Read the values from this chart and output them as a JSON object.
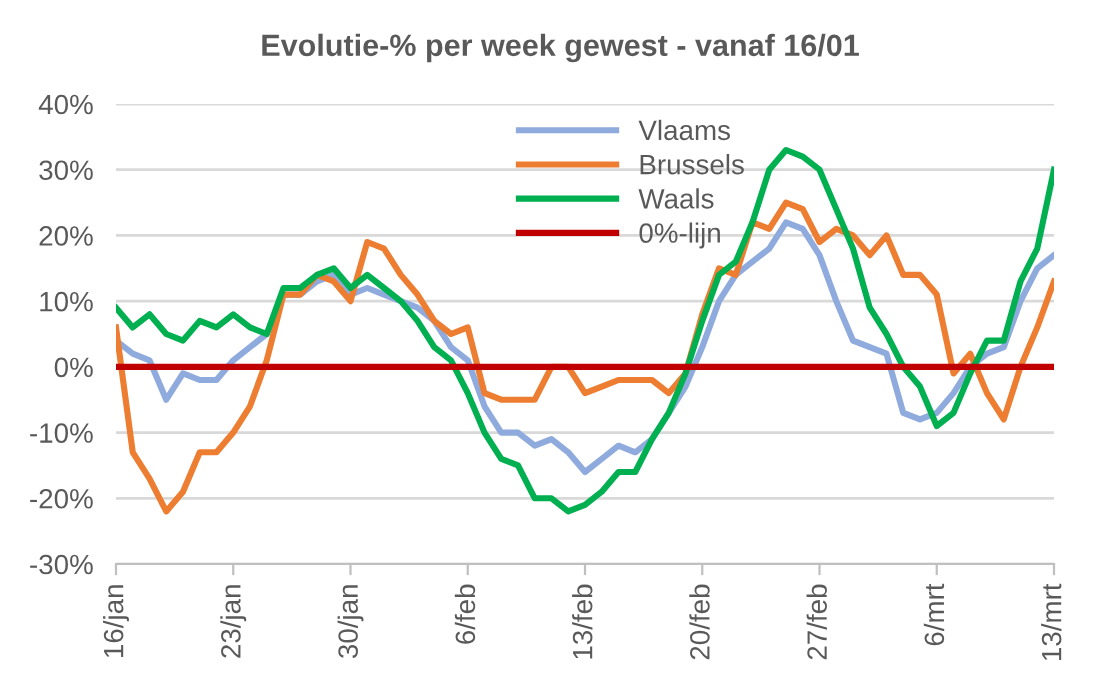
{
  "chart_data": {
    "type": "line",
    "title": "Evolutie-% per week gewest - vanaf 16/01",
    "categories": [
      "16/jan",
      null,
      null,
      null,
      null,
      null,
      null,
      "23/jan",
      null,
      null,
      null,
      null,
      null,
      null,
      "30/jan",
      null,
      null,
      null,
      null,
      null,
      null,
      "6/feb",
      null,
      null,
      null,
      null,
      null,
      null,
      "13/feb",
      null,
      null,
      null,
      null,
      null,
      null,
      "20/feb",
      null,
      null,
      null,
      null,
      null,
      null,
      "27/feb",
      null,
      null,
      null,
      null,
      null,
      null,
      "6/mrt",
      null,
      null,
      null,
      null,
      null,
      null,
      "13/mrt"
    ],
    "series": [
      {
        "name": "Vlaams",
        "color": "#8faadc",
        "values": [
          4,
          2,
          1,
          -5,
          -1,
          -2,
          -2,
          1,
          3,
          5,
          11,
          11,
          13,
          14,
          11,
          12,
          11,
          10,
          9,
          7,
          3,
          1,
          -6,
          -10,
          -10,
          -12,
          -11,
          -13,
          -16,
          -14,
          -12,
          -13,
          -11,
          -7,
          -3,
          3,
          10,
          14,
          16,
          18,
          22,
          21,
          17,
          10,
          4,
          3,
          2,
          -7,
          -8,
          -7,
          -4,
          0,
          2,
          3,
          10,
          15,
          17
        ]
      },
      {
        "name": "Brussels",
        "color": "#ed7d31",
        "values": [
          6,
          -13,
          -17,
          -22,
          -19,
          -13,
          -13,
          -10,
          -6,
          1,
          11,
          11,
          14,
          13,
          10,
          19,
          18,
          14,
          11,
          7,
          5,
          6,
          -4,
          -5,
          -5,
          -5,
          0,
          0,
          -4,
          -3,
          -2,
          -2,
          -2,
          -4,
          -1,
          8,
          15,
          14,
          22,
          21,
          25,
          24,
          19,
          21,
          20,
          17,
          20,
          14,
          14,
          11,
          -1,
          2,
          -4,
          -8,
          0,
          6,
          13
        ]
      },
      {
        "name": "Waals",
        "color": "#00b050",
        "values": [
          9,
          6,
          8,
          5,
          4,
          7,
          6,
          8,
          6,
          5,
          12,
          12,
          14,
          15,
          12,
          14,
          12,
          10,
          7,
          3,
          1,
          -4,
          -10,
          -14,
          -15,
          -20,
          -20,
          -22,
          -21,
          -19,
          -16,
          -16,
          -11,
          -7,
          -1,
          7,
          14,
          16,
          22,
          30,
          33,
          32,
          30,
          24,
          18,
          9,
          5,
          0,
          -3,
          -9,
          -7,
          -1,
          4,
          4,
          13,
          18,
          30
        ]
      },
      {
        "name": "0%-lijn",
        "color": "#c00000",
        "values": [
          0,
          0,
          0,
          0,
          0,
          0,
          0,
          0,
          0,
          0,
          0,
          0,
          0,
          0,
          0,
          0,
          0,
          0,
          0,
          0,
          0,
          0,
          0,
          0,
          0,
          0,
          0,
          0,
          0,
          0,
          0,
          0,
          0,
          0,
          0,
          0,
          0,
          0,
          0,
          0,
          0,
          0,
          0,
          0,
          0,
          0,
          0,
          0,
          0,
          0,
          0,
          0,
          0,
          0,
          0,
          0,
          0
        ]
      }
    ],
    "ylim": [
      -30,
      40
    ],
    "yticks": [
      {
        "value": -30,
        "label": "-30%"
      },
      {
        "value": -20,
        "label": "-20%"
      },
      {
        "value": -10,
        "label": "-10%"
      },
      {
        "value": 0,
        "label": "0%"
      },
      {
        "value": 10,
        "label": "10%"
      },
      {
        "value": 20,
        "label": "20%"
      },
      {
        "value": 30,
        "label": "30%"
      },
      {
        "value": 40,
        "label": "40%"
      }
    ],
    "grid": "y",
    "legend": "top",
    "marker": "none",
    "line_style": "solid"
  }
}
